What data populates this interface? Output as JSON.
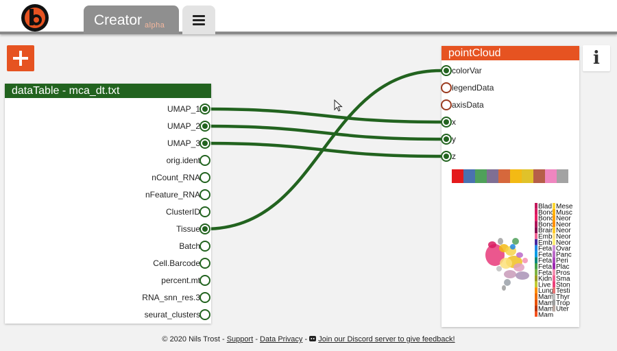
{
  "header": {
    "app_title": "Creator",
    "app_subtitle": "alpha"
  },
  "data_table_node": {
    "title": "dataTable - mca_dt.txt",
    "outputs": [
      {
        "label": "UMAP_1",
        "connected": true
      },
      {
        "label": "UMAP_2",
        "connected": true
      },
      {
        "label": "UMAP_3",
        "connected": true
      },
      {
        "label": "orig.ident",
        "connected": false
      },
      {
        "label": "nCount_RNA",
        "connected": false
      },
      {
        "label": "nFeature_RNA",
        "connected": false
      },
      {
        "label": "ClusterID",
        "connected": false
      },
      {
        "label": "Tissue",
        "connected": true
      },
      {
        "label": "Batch",
        "connected": false
      },
      {
        "label": "Cell.Barcode",
        "connected": false
      },
      {
        "label": "percent.mt",
        "connected": false
      },
      {
        "label": "RNA_snn_res.3",
        "connected": false
      },
      {
        "label": "seurat_clusters",
        "connected": false
      }
    ]
  },
  "point_cloud_node": {
    "title": "pointCloud",
    "inputs": [
      {
        "label": "colorVar",
        "connected": true
      },
      {
        "label": "legendData",
        "connected": false
      },
      {
        "label": "axisData",
        "connected": false
      },
      {
        "label": "x",
        "connected": true
      },
      {
        "label": "y",
        "connected": true
      },
      {
        "label": "z",
        "connected": true
      }
    ],
    "palette": [
      "#e41a1c",
      "#4a72b0",
      "#4fa05a",
      "#7f6f94",
      "#d6683c",
      "#f3ba14",
      "#e0c22a",
      "#b65f49",
      "#ef86c0",
      "#a3a3a3"
    ],
    "legend_col1": [
      "Blad",
      "Bonc",
      "Bonc",
      "Bonc",
      "Brair",
      "Emb",
      "Emb",
      "Feta",
      "Feta",
      "Feta",
      "Feta",
      "Feta",
      "Kidn",
      "Live",
      "Lung",
      "Mam",
      "Mam",
      "Mam",
      "Mam"
    ],
    "legend_col2": [
      "Mese",
      "Musc",
      "Neor",
      "Neor",
      "Neor",
      "Neor",
      "Neor",
      "Ovar",
      "Panc",
      "Peri",
      "Plac",
      "Pros",
      "Sma",
      "Ston",
      "Testi",
      "Thyr",
      "Trop",
      "Uter"
    ],
    "legend_colors1": [
      "#c2185b",
      "#d81b60",
      "#e91e63",
      "#ad1457",
      "#880e4f",
      "#f06292",
      "#4527a0",
      "#1e88e5",
      "#039be5",
      "#00897b",
      "#43a047",
      "#7cb342",
      "#9e9d24",
      "#c0ca33",
      "#fb8c00",
      "#ef6c00",
      "#e65100",
      "#bf360c",
      "#f4511e"
    ],
    "legend_colors2": [
      "#fdd835",
      "#ffb300",
      "#ffa000",
      "#ff8f00",
      "#ffca28",
      "#ffe082",
      "#fff176",
      "#ce93d8",
      "#ba68c8",
      "#ab47bc",
      "#9c27b0",
      "#f48fb1",
      "#f06292",
      "#ec407a",
      "#e57373",
      "#bdbdbd",
      "#9e9e9e",
      "#bcaaa4"
    ]
  },
  "footer": {
    "copyright": "© 2020 Nils Trost -",
    "support_link": "Support",
    "sep1": "-",
    "privacy_link": "Data Privacy",
    "sep2": "-",
    "discord_link": "Join our Discord server to give feedback!"
  },
  "icons": {
    "logo": "b-logo-icon",
    "menu": "hamburger-menu-icon",
    "add": "plus-icon",
    "info": "info-icon",
    "discord": "discord-icon",
    "cursor": "mouse-cursor-icon"
  },
  "colors": {
    "accent_orange": "#e65321",
    "node_green": "#22631f",
    "tab_grey": "#8f8f8f"
  }
}
